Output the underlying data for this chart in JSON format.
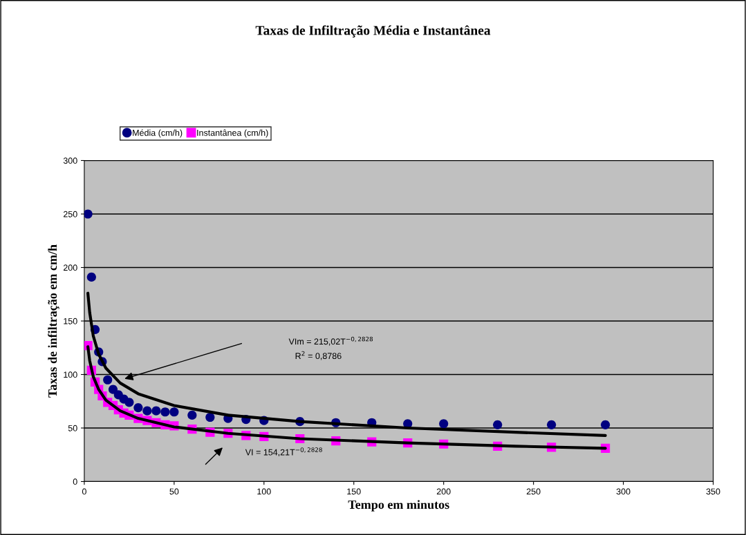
{
  "chart_data": {
    "type": "scatter",
    "title": "Taxas de Infiltração Média e Instantânea",
    "xlabel": "Tempo em minutos",
    "ylabel": "Taxas de infiltração em cm/h",
    "xlim": [
      0,
      350
    ],
    "xticks": [
      0,
      50,
      100,
      150,
      200,
      250,
      300,
      350
    ],
    "ylim": [
      0,
      300
    ],
    "yticks": [
      0,
      50,
      100,
      150,
      200,
      250,
      300
    ],
    "grid": "y",
    "legend": "top left",
    "x": [
      2,
      4,
      6,
      8,
      10,
      13,
      16,
      19,
      22,
      25,
      30,
      35,
      40,
      45,
      50,
      60,
      70,
      80,
      90,
      100,
      120,
      140,
      160,
      180,
      200,
      230,
      260,
      290
    ],
    "series": [
      {
        "name": "Média (cm/h)",
        "color": "#000080",
        "marker": "circle",
        "values": [
          250,
          191,
          142,
          121,
          112,
          95,
          86,
          81,
          77,
          74,
          69,
          66,
          66,
          65,
          65,
          62,
          60,
          59,
          58,
          57,
          56,
          55,
          55,
          54,
          54,
          53,
          53,
          53
        ]
      },
      {
        "name": "Instantânea (cm/h)",
        "color": "#ff00ff",
        "marker": "square",
        "values": [
          127,
          104,
          93,
          86,
          80,
          74,
          71,
          67,
          64,
          62,
          59,
          57,
          55,
          53,
          52,
          49,
          46,
          45,
          43,
          42,
          40,
          38,
          37,
          36,
          35,
          33,
          32,
          31
        ]
      },
      {
        "type": "line",
        "color": "#000000",
        "marker": "none",
        "x": [
          2,
          3,
          5,
          8,
          12,
          20,
          30,
          50,
          80,
          120,
          180,
          240,
          290
        ],
        "values": [
          176,
          158,
          136,
          119,
          106,
          92,
          82,
          71,
          62,
          56,
          50,
          46,
          43
        ]
      },
      {
        "type": "line",
        "color": "#000000",
        "marker": "none",
        "x": [
          2,
          3,
          5,
          8,
          12,
          20,
          30,
          50,
          80,
          120,
          180,
          240,
          290
        ],
        "values": [
          126,
          113,
          98,
          86,
          76,
          66,
          59,
          51,
          45,
          40,
          36,
          33,
          31
        ]
      }
    ],
    "annotations": [
      "VIm = 215,02T$^{−0,2828}$",
      "R$^{2}$ = 0,8786",
      "VI = 154,21T$^{−0,2828}$"
    ]
  }
}
